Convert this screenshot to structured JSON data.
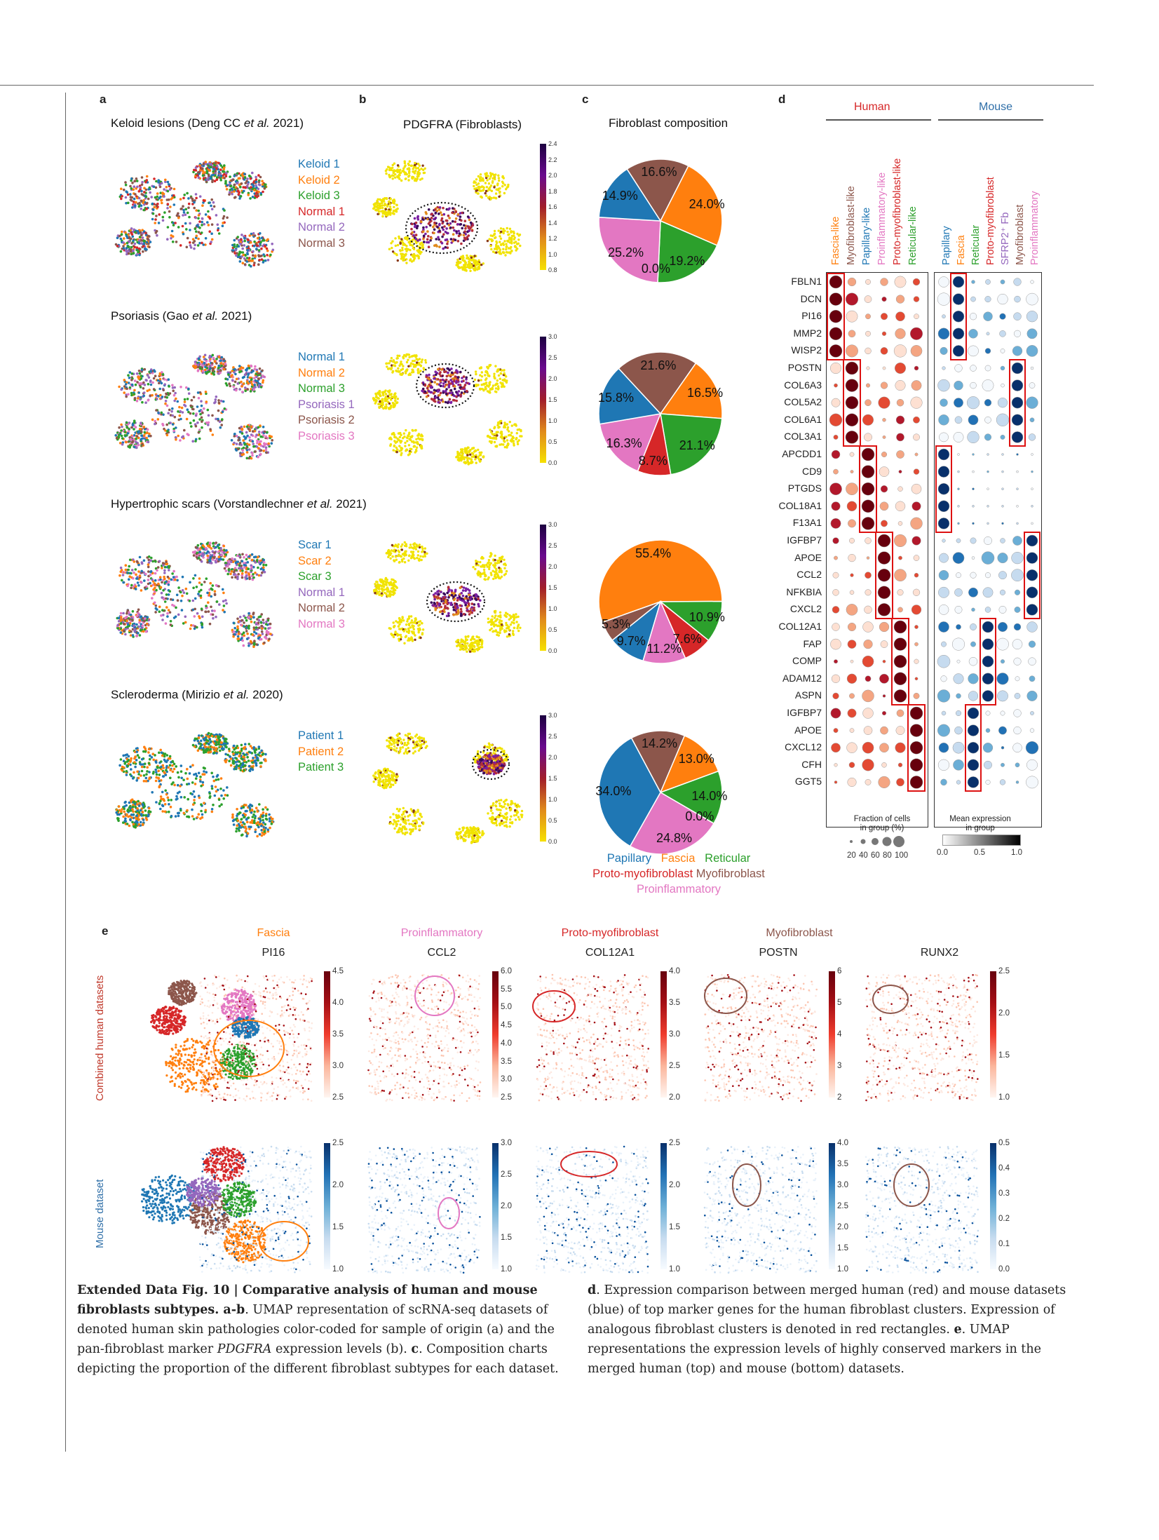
{
  "panels": {
    "a_label": "a",
    "b_label": "b",
    "c_label": "c",
    "d_label": "d",
    "e_label": "e"
  },
  "datasets": [
    {
      "title_main": "Keloid lesions  (Deng CC ",
      "title_italic": "et al.",
      "title_end": " 2021)",
      "legend": [
        {
          "label": "Keloid 1",
          "color": "#1f77b4"
        },
        {
          "label": "Keloid 2",
          "color": "#ff7f0e"
        },
        {
          "label": "Keloid 3",
          "color": "#2ca02c"
        },
        {
          "label": "Normal 1",
          "color": "#d62728"
        },
        {
          "label": "Normal 2",
          "color": "#9467bd"
        },
        {
          "label": "Normal 3",
          "color": "#8c564b"
        }
      ],
      "cbar_ticks": [
        "2.4",
        "2.2",
        "2.0",
        "1.8",
        "1.6",
        "1.4",
        "1.2",
        "1.0",
        "0.8"
      ]
    },
    {
      "title_main": "Psoriasis (Gao ",
      "title_italic": "et al.",
      "title_end": " 2021)",
      "legend": [
        {
          "label": "Normal 1",
          "color": "#1f77b4"
        },
        {
          "label": "Normal 2",
          "color": "#ff7f0e"
        },
        {
          "label": "Normal 3",
          "color": "#2ca02c"
        },
        {
          "label": "Psoriasis 1",
          "color": "#9467bd"
        },
        {
          "label": "Psoriasis 2",
          "color": "#8c564b"
        },
        {
          "label": "Psoriasis 3",
          "color": "#e377c2"
        }
      ],
      "cbar_ticks": [
        "3.0",
        "2.5",
        "2.0",
        "1.5",
        "1.0",
        "0.5",
        "0.0"
      ]
    },
    {
      "title_main": "Hypertrophic scars (Vorstandlechner ",
      "title_italic": "et al.",
      "title_end": " 2021)",
      "legend": [
        {
          "label": "Scar 1",
          "color": "#1f77b4"
        },
        {
          "label": "Scar 2",
          "color": "#ff7f0e"
        },
        {
          "label": "Scar 3",
          "color": "#2ca02c"
        },
        {
          "label": "Normal 1",
          "color": "#9467bd"
        },
        {
          "label": "Normal 2",
          "color": "#8c564b"
        },
        {
          "label": "Normal 3",
          "color": "#e377c2"
        }
      ],
      "cbar_ticks": [
        "3.0",
        "2.5",
        "2.0",
        "1.5",
        "1.0",
        "0.5",
        "0.0"
      ]
    },
    {
      "title_main": "Scleroderma (Mirizio ",
      "title_italic": "et al.",
      "title_end": " 2020)",
      "legend": [
        {
          "label": "Patient 1",
          "color": "#1f77b4"
        },
        {
          "label": "Patient 2",
          "color": "#ff7f0e"
        },
        {
          "label": "Patient 3",
          "color": "#2ca02c"
        }
      ],
      "cbar_ticks": [
        "3.0",
        "2.5",
        "2.0",
        "1.5",
        "1.0",
        "0.5",
        "0.0"
      ]
    }
  ],
  "b_title": "PDGFRA (Fibroblasts)",
  "c_title": "Fibroblast composition",
  "pie_legend": [
    {
      "label": "Papillary",
      "color": "#1f77b4"
    },
    {
      "label": "Fascia",
      "color": "#ff7f0e"
    },
    {
      "label": "Reticular",
      "color": "#2ca02c"
    },
    {
      "label": "Proto-myofibroblast",
      "color": "#d62728"
    },
    {
      "label": "Myofibroblast",
      "color": "#8c564b"
    },
    {
      "label": "Proinflammatory",
      "color": "#e377c2"
    }
  ],
  "chart_data": [
    {
      "type": "pie",
      "slices": [
        {
          "label": "Myofibroblast",
          "value": 16.6
        },
        {
          "label": "Fascia",
          "value": 24.0
        },
        {
          "label": "Reticular",
          "value": 19.2
        },
        {
          "label": "Proto-myofibroblast",
          "value": 0.0
        },
        {
          "label": "Proinflammatory",
          "value": 25.2
        },
        {
          "label": "Papillary",
          "value": 14.9
        }
      ],
      "labels": [
        "16.6%",
        "24.0%",
        "19.2%",
        "0.0%",
        "25.2%",
        "14.9%"
      ]
    },
    {
      "type": "pie",
      "slices": [
        {
          "label": "Myofibroblast",
          "value": 21.6
        },
        {
          "label": "Fascia",
          "value": 16.5
        },
        {
          "label": "Reticular",
          "value": 21.1
        },
        {
          "label": "Proto-myofibroblast",
          "value": 8.7
        },
        {
          "label": "Proinflammatory",
          "value": 16.3
        },
        {
          "label": "Papillary",
          "value": 15.8
        }
      ],
      "labels": [
        "21.6%",
        "16.5%",
        "21.1%",
        "8.7%",
        "16.3%",
        "15.8%"
      ]
    },
    {
      "type": "pie",
      "slices": [
        {
          "label": "Fascia",
          "value": 55.4
        },
        {
          "label": "Reticular",
          "value": 10.9
        },
        {
          "label": "Proto-myofibroblast",
          "value": 7.6
        },
        {
          "label": "Proinflammatory",
          "value": 11.2
        },
        {
          "label": "Papillary",
          "value": 9.7
        },
        {
          "label": "Myofibroblast",
          "value": 5.3
        }
      ],
      "labels": [
        "55.4%",
        "10.9%",
        "7.6%",
        "11.2%",
        "9.7%",
        "5.3%"
      ]
    },
    {
      "type": "pie",
      "slices": [
        {
          "label": "Myofibroblast",
          "value": 14.2
        },
        {
          "label": "Fascia",
          "value": 13.0
        },
        {
          "label": "Reticular",
          "value": 14.0
        },
        {
          "label": "Proto-myofibroblast",
          "value": 0.0
        },
        {
          "label": "Proinflammatory",
          "value": 24.8
        },
        {
          "label": "Papillary",
          "value": 34.0
        }
      ],
      "labels": [
        "14.2%",
        "13.0%",
        "14.0%",
        "0.0%",
        "24.8%",
        "34.0%"
      ]
    }
  ],
  "d": {
    "human_label": "Human",
    "mouse_label": "Mouse",
    "human_cols": [
      {
        "label": "Fascia-like",
        "color": "#ff7f0e"
      },
      {
        "label": "Myofibroblast-like",
        "color": "#8c564b"
      },
      {
        "label": "Papillary-like",
        "color": "#1f77b4"
      },
      {
        "label": "Proinflammatory-like",
        "color": "#e377c2"
      },
      {
        "label": "Proto-myofibroblast-like",
        "color": "#d62728"
      },
      {
        "label": "Reticular-like",
        "color": "#2ca02c"
      }
    ],
    "mouse_cols": [
      {
        "label": "Papillary",
        "color": "#1f77b4"
      },
      {
        "label": "Fascia",
        "color": "#ff7f0e"
      },
      {
        "label": "Reticular",
        "color": "#2ca02c"
      },
      {
        "label": "Proto-myofibroblast",
        "color": "#d62728"
      },
      {
        "label": "SFRP2⁺ Fb",
        "color": "#9467bd"
      },
      {
        "label": "Myofibroblast",
        "color": "#8c564b"
      },
      {
        "label": "Proinflammatory",
        "color": "#e377c2"
      }
    ],
    "genes": [
      "FBLN1",
      "DCN",
      "PI16",
      "MMP2",
      "WISP2",
      "POSTN",
      "COL6A3",
      "COL5A2",
      "COL6A1",
      "COL3A1",
      "APCDD1",
      "CD9",
      "PTGDS",
      "COL18A1",
      "F13A1",
      "IGFBP7",
      "APOE",
      "CCL2",
      "NFKBIA",
      "CXCL2",
      "COL12A1",
      "FAP",
      "COMP",
      "ADAM12",
      "ASPN",
      "IGFBP7",
      "APOE",
      "CXCL12",
      "CFH",
      "GGT5"
    ],
    "frac_title": "Fraction of cells\nin group (%)",
    "frac_ticks": [
      "20",
      "40",
      "60",
      "80",
      "100"
    ],
    "mean_title": "Mean expression\nin group",
    "mean_ticks": [
      "0.0",
      "0.5",
      "1.0"
    ]
  },
  "e": {
    "group_labels": [
      {
        "label": "Fascia",
        "color": "#ff7f0e"
      },
      {
        "label": "Proinflammatory",
        "color": "#e377c2"
      },
      {
        "label": "Proto-myofibroblast",
        "color": "#d62728"
      },
      {
        "label": "Myofibroblast",
        "color": "#8c564b"
      }
    ],
    "genes": [
      "PI16",
      "CCL2",
      "COL12A1",
      "POSTN",
      "RUNX2"
    ],
    "row_labels": [
      {
        "label": "Combined human datasets",
        "color": "#c0392b"
      },
      {
        "label": "Mouse dataset",
        "color": "#2f6fa8"
      }
    ],
    "human_ticks": [
      [
        "4.5",
        "4.0",
        "3.5",
        "3.0",
        "2.5"
      ],
      [
        "6.0",
        "5.5",
        "5.0",
        "4.5",
        "4.0",
        "3.5",
        "3.0",
        "2.5"
      ],
      [
        "4.0",
        "3.5",
        "3.0",
        "2.5",
        "2.0"
      ],
      [
        "6",
        "5",
        "4",
        "3",
        "2"
      ],
      [
        "2.5",
        "2.0",
        "1.5",
        "1.0"
      ]
    ],
    "mouse_ticks": [
      [
        "2.5",
        "2.0",
        "1.5",
        "1.0"
      ],
      [
        "3.0",
        "2.5",
        "2.0",
        "1.5",
        "1.0"
      ],
      [
        "2.5",
        "2.0",
        "1.5",
        "1.0"
      ],
      [
        "4.0",
        "3.5",
        "3.0",
        "2.5",
        "2.0",
        "1.5",
        "1.0"
      ],
      [
        "0.5",
        "0.4",
        "0.3",
        "0.2",
        "0.1",
        "0.0"
      ]
    ]
  },
  "caption": {
    "left_bold": "Extended Data Fig. 10 | Comparative analysis of human and mouse fibroblasts subtypes. a-b",
    "left_1": ". UMAP representation of scRNA-seq datasets of denoted human skin pathologies color-coded for sample of origin (a) and the pan-fibroblast marker ",
    "left_italic": "PDGFRA",
    "left_2": " expression levels (b). ",
    "left_c": "c",
    "left_3": ". Composition charts depicting the proportion of the different fibroblast subtypes for each dataset.",
    "right_d": "d",
    "right_1": ". Expression comparison between merged human (red) and mouse datasets (blue) of top marker genes for the human fibroblast clusters. Expression of analogous fibroblast clusters is denoted in red rectangles. ",
    "right_e": "e",
    "right_2": ". UMAP representations the expression levels of highly conserved markers in the merged human (top) and mouse (bottom) datasets."
  }
}
